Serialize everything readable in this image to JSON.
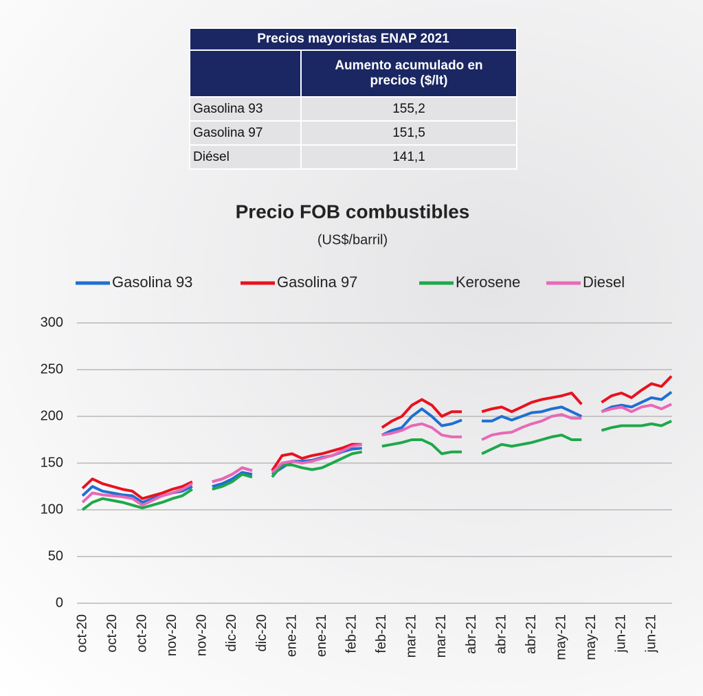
{
  "table": {
    "title": "Precios mayoristas ENAP 2021",
    "column_header": "Aumento acumulado en precios ($/lt)",
    "rows": [
      [
        "Gasolina 93",
        "155,2"
      ],
      [
        "Gasolina 97",
        "151,5"
      ],
      [
        "Diésel",
        "141,1"
      ]
    ]
  },
  "chart_data": {
    "type": "line",
    "title": "Precio FOB combustibles",
    "subtitle": "(US$/barril)",
    "categories": [
      "oct-20",
      null,
      null,
      "oct-20",
      null,
      null,
      "oct-20",
      null,
      null,
      "nov-20",
      null,
      null,
      "nov-20",
      null,
      null,
      "dic-20",
      null,
      null,
      "dic-20",
      null,
      null,
      "ene-21",
      null,
      null,
      "ene-21",
      null,
      null,
      "feb-21",
      null,
      null,
      "feb-21",
      null,
      null,
      "mar-21",
      null,
      null,
      "mar-21",
      null,
      null,
      "abr-21",
      null,
      null,
      "abr-21",
      null,
      null,
      "abr-21",
      null,
      null,
      "may-21",
      null,
      null,
      "may-21",
      null,
      null,
      "jun-21",
      null,
      null,
      "jun-21",
      null,
      null
    ],
    "series": [
      {
        "name": "Gasolina 93",
        "color": "#1f6fd1",
        "values": [
          115,
          125,
          120,
          118,
          116,
          115,
          108,
          112,
          115,
          118,
          120,
          125,
          null,
          125,
          128,
          133,
          140,
          138,
          null,
          138,
          145,
          152,
          152,
          153,
          156,
          158,
          162,
          165,
          166,
          null,
          180,
          185,
          188,
          200,
          208,
          200,
          190,
          192,
          196,
          null,
          195,
          195,
          200,
          196,
          200,
          204,
          205,
          208,
          210,
          205,
          200,
          null,
          205,
          210,
          212,
          210,
          215,
          220,
          218,
          226
        ]
      },
      {
        "name": "Gasolina 97",
        "color": "#e8121e",
        "values": [
          123,
          133,
          128,
          125,
          122,
          120,
          112,
          115,
          118,
          122,
          125,
          130,
          null,
          130,
          133,
          138,
          145,
          142,
          null,
          142,
          158,
          160,
          155,
          158,
          160,
          163,
          166,
          170,
          170,
          null,
          188,
          195,
          200,
          212,
          218,
          212,
          200,
          205,
          205,
          null,
          205,
          208,
          210,
          205,
          210,
          215,
          218,
          220,
          222,
          225,
          213,
          null,
          215,
          222,
          225,
          220,
          228,
          235,
          232,
          243
        ]
      },
      {
        "name": "Kerosene",
        "color": "#1fa84a",
        "values": [
          100,
          108,
          112,
          110,
          108,
          105,
          102,
          105,
          108,
          112,
          115,
          122,
          null,
          122,
          125,
          130,
          138,
          135,
          null,
          135,
          148,
          148,
          145,
          143,
          145,
          150,
          155,
          160,
          162,
          null,
          168,
          170,
          172,
          175,
          175,
          170,
          160,
          162,
          162,
          null,
          160,
          165,
          170,
          168,
          170,
          172,
          175,
          178,
          180,
          175,
          175,
          null,
          185,
          188,
          190,
          190,
          190,
          192,
          190,
          195
        ]
      },
      {
        "name": "Diesel",
        "color": "#e868b8",
        "values": [
          108,
          118,
          116,
          115,
          114,
          112,
          105,
          110,
          115,
          118,
          122,
          128,
          null,
          130,
          133,
          138,
          145,
          142,
          null,
          140,
          150,
          152,
          150,
          152,
          155,
          158,
          163,
          168,
          170,
          null,
          180,
          182,
          185,
          190,
          192,
          188,
          180,
          178,
          178,
          null,
          175,
          180,
          182,
          183,
          188,
          192,
          195,
          200,
          202,
          198,
          198,
          null,
          205,
          208,
          210,
          205,
          210,
          212,
          208,
          213
        ]
      }
    ],
    "ylim": [
      0,
      300
    ],
    "yticks": [
      0,
      50,
      100,
      150,
      200,
      250,
      300
    ],
    "grid": true,
    "legend": "top"
  }
}
